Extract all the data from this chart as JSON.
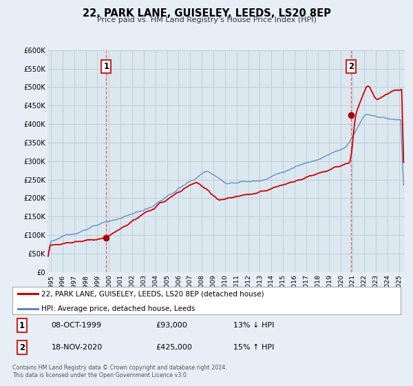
{
  "title": "22, PARK LANE, GUISELEY, LEEDS, LS20 8EP",
  "subtitle": "Price paid vs. HM Land Registry's House Price Index (HPI)",
  "background_color": "#e8eef5",
  "plot_bg_color": "#dce8f0",
  "grid_color": "#c0cdd8",
  "ylim": [
    0,
    600000
  ],
  "yticks": [
    0,
    50000,
    100000,
    150000,
    200000,
    250000,
    300000,
    350000,
    400000,
    450000,
    500000,
    550000,
    600000
  ],
  "ytick_labels": [
    "£0",
    "£50K",
    "£100K",
    "£150K",
    "£200K",
    "£250K",
    "£300K",
    "£350K",
    "£400K",
    "£450K",
    "£500K",
    "£550K",
    "£600K"
  ],
  "xlim_start": 1994.7,
  "xlim_end": 2025.5,
  "xticks": [
    1995,
    1996,
    1997,
    1998,
    1999,
    2000,
    2001,
    2002,
    2003,
    2004,
    2005,
    2006,
    2007,
    2008,
    2009,
    2010,
    2011,
    2012,
    2013,
    2014,
    2015,
    2016,
    2017,
    2018,
    2019,
    2020,
    2021,
    2022,
    2023,
    2024,
    2025
  ],
  "sale1_x": 1999.77,
  "sale1_y": 93000,
  "sale1_label": "1",
  "sale1_date": "08-OCT-1999",
  "sale1_price": "£93,000",
  "sale1_hpi": "13% ↓ HPI",
  "sale2_x": 2020.88,
  "sale2_y": 425000,
  "sale2_label": "2",
  "sale2_date": "18-NOV-2020",
  "sale2_price": "£425,000",
  "sale2_hpi": "15% ↑ HPI",
  "red_line_color": "#cc0000",
  "blue_line_color": "#5588bb",
  "marker_color": "#aa0000",
  "vline_color": "#dd4444",
  "legend_bg": "#ffffff",
  "legend_border": "#aaaaaa",
  "legend_label_red": "22, PARK LANE, GUISELEY, LEEDS, LS20 8EP (detached house)",
  "legend_label_blue": "HPI: Average price, detached house, Leeds",
  "sale_box_edge": "#cc2222",
  "footer1": "Contains HM Land Registry data © Crown copyright and database right 2024.",
  "footer2": "This data is licensed under the Open Government Licence v3.0."
}
